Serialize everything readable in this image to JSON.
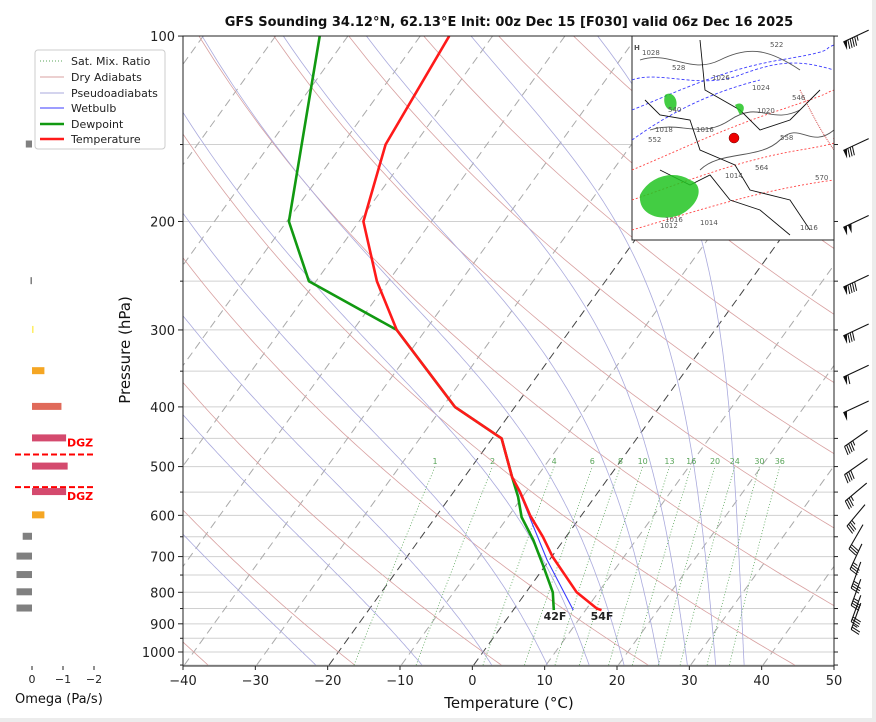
{
  "chart_data": {
    "type": "line",
    "subtype": "skew-t log-p sounding",
    "title": "GFS Sounding 34.12°N, 62.13°E Init: 00z Dec 15 [F030] valid 06z Dec 16 2025",
    "xlabel": "Temperature (°C)",
    "ylabel": "Pressure (hPa)",
    "xlim": [
      -40,
      50
    ],
    "ylim": [
      1050,
      100
    ],
    "y_scale": "log",
    "x_ticks": [
      "−40",
      "−30",
      "−20",
      "−10",
      "0",
      "10",
      "20",
      "30",
      "40",
      "50"
    ],
    "y_ticks": [
      "100",
      "200",
      "300",
      "400",
      "500",
      "600",
      "700",
      "800",
      "900",
      "1000"
    ],
    "grid": true,
    "legend": {
      "placement": "top-left, outside plot",
      "entries": [
        "Sat. Mix. Ratio",
        "Dry Adiabats",
        "Pseudoadiabats",
        "Wetbulb",
        "Dewpoint",
        "Temperature"
      ]
    },
    "colors": {
      "temperature": "#ff1a1a",
      "dewpoint": "#119911",
      "wetbulb": "#3b3bff",
      "dry_adiabats": "#d8a0a0",
      "pseudoadiabats": "#aaaadd",
      "mixing_ratio": "#5aa55a",
      "isotherms": "#aaaaaa",
      "highlight_isotherms": "#444444"
    },
    "highlight_isotherms_c": [
      -20,
      0
    ],
    "series": [
      {
        "name": "Temperature",
        "p_hpa": [
          855,
          850,
          800,
          700,
          650,
          600,
          550,
          520,
          450,
          400,
          300,
          250,
          200,
          150,
          100
        ],
        "t_c": [
          12.2,
          11.4,
          7.0,
          0.1,
          -3.2,
          -7.1,
          -10.8,
          -13.4,
          -18.7,
          -28.3,
          -44.0,
          -51.6,
          -59.4,
          -64.0,
          -66.0
        ]
      },
      {
        "name": "Dewpoint",
        "p_hpa": [
          855,
          800,
          722,
          658,
          604,
          560,
          520,
          450,
          400,
          300,
          250,
          200,
          100
        ],
        "t_c": [
          5.6,
          3.7,
          -0.4,
          -4.2,
          -8.1,
          -10.6,
          -13.4,
          -18.7,
          -28.3,
          -44.0,
          -61.0,
          -69.7,
          -83.9
        ]
      },
      {
        "name": "Wetbulb",
        "p_hpa": [
          855,
          709,
          566,
          520,
          450
        ],
        "t_c": [
          8.3,
          -0.3,
          -9.7,
          -13.4,
          -18.7
        ]
      }
    ],
    "surface_labels": {
      "dewpoint": "42F",
      "temperature": "54F"
    },
    "mixing_ratio_lines_gkg": [
      "1",
      "2",
      "4",
      "6",
      "8",
      "10",
      "13",
      "16",
      "20",
      "24",
      "30",
      "36"
    ],
    "dry_adiabats_theta_c": [
      -40,
      -20,
      0,
      20,
      40,
      60,
      80,
      100,
      120,
      140,
      160,
      180,
      200,
      220,
      240
    ],
    "pseudoadiabats_t1000_c": [
      -25,
      -10,
      0,
      8,
      14,
      19,
      24,
      28,
      32,
      36
    ],
    "wind_barbs": [
      {
        "p_hpa": 100,
        "dir_deg": 245,
        "speed_kt": 95
      },
      {
        "p_hpa": 150,
        "dir_deg": 245,
        "speed_kt": 80
      },
      {
        "p_hpa": 200,
        "dir_deg": 245,
        "speed_kt": 100
      },
      {
        "p_hpa": 250,
        "dir_deg": 245,
        "speed_kt": 90
      },
      {
        "p_hpa": 300,
        "dir_deg": 245,
        "speed_kt": 80
      },
      {
        "p_hpa": 350,
        "dir_deg": 245,
        "speed_kt": 60
      },
      {
        "p_hpa": 400,
        "dir_deg": 245,
        "speed_kt": 50
      },
      {
        "p_hpa": 450,
        "dir_deg": 235,
        "speed_kt": 45
      },
      {
        "p_hpa": 500,
        "dir_deg": 235,
        "speed_kt": 40
      },
      {
        "p_hpa": 550,
        "dir_deg": 230,
        "speed_kt": 35
      },
      {
        "p_hpa": 600,
        "dir_deg": 220,
        "speed_kt": 35
      },
      {
        "p_hpa": 650,
        "dir_deg": 210,
        "speed_kt": 30
      },
      {
        "p_hpa": 700,
        "dir_deg": 205,
        "speed_kt": 35
      },
      {
        "p_hpa": 750,
        "dir_deg": 200,
        "speed_kt": 35
      },
      {
        "p_hpa": 800,
        "dir_deg": 200,
        "speed_kt": 35
      },
      {
        "p_hpa": 850,
        "dir_deg": 200,
        "speed_kt": 30
      },
      {
        "p_hpa": 875,
        "dir_deg": 200,
        "speed_kt": 25
      }
    ],
    "omega": {
      "xlabel": "Omega (Pa/s)",
      "x_ticks": [
        {
          "value": 0,
          "label": "0"
        },
        {
          "value": -1,
          "label": "−1"
        },
        {
          "value": -2,
          "label": "−2"
        }
      ],
      "bars": [
        {
          "p_hpa": 150,
          "value": 0.2,
          "color": "#808080"
        },
        {
          "p_hpa": 250,
          "value": 0.05,
          "color": "#808080"
        },
        {
          "p_hpa": 300,
          "value": -0.05,
          "color": "#ffee66"
        },
        {
          "p_hpa": 350,
          "value": -0.4,
          "color": "#f5a623"
        },
        {
          "p_hpa": 400,
          "value": -0.95,
          "color": "#e06a5a"
        },
        {
          "p_hpa": 450,
          "value": -1.1,
          "color": "#d44a6e"
        },
        {
          "p_hpa": 500,
          "value": -1.15,
          "color": "#d44a6e"
        },
        {
          "p_hpa": 550,
          "value": -1.1,
          "color": "#d44a6e"
        },
        {
          "p_hpa": 600,
          "value": -0.4,
          "color": "#f5a623"
        },
        {
          "p_hpa": 650,
          "value": 0.3,
          "color": "#808080"
        },
        {
          "p_hpa": 700,
          "value": 0.5,
          "color": "#808080"
        },
        {
          "p_hpa": 750,
          "value": 0.5,
          "color": "#808080"
        },
        {
          "p_hpa": 800,
          "value": 0.5,
          "color": "#808080"
        },
        {
          "p_hpa": 850,
          "value": 0.5,
          "color": "#808080"
        }
      ],
      "dgz": {
        "label": "DGZ",
        "color": "#ff0000",
        "top_p_hpa": 478,
        "bottom_p_hpa": 540
      }
    },
    "inset_map": {
      "description_marker_color": "#ee0000",
      "labels": [
        "H",
        "1028",
        "522",
        "528",
        "1026",
        "1024",
        "1020",
        "1018",
        "1016",
        "540",
        "546",
        "552",
        "558",
        "564",
        "570",
        "1016",
        "1014",
        "1012",
        "1014",
        "1016"
      ]
    }
  }
}
